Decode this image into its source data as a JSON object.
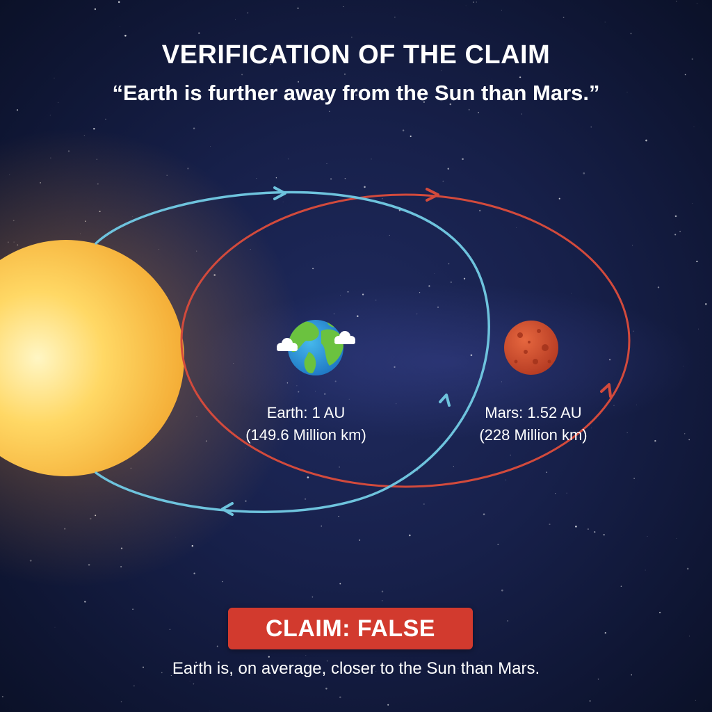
{
  "title": "VERIFICATION OF THE CLAIM",
  "claim": "“Earth is further away from the Sun than Mars.”",
  "earth": {
    "name_distance": "Earth: 1 AU",
    "distance_km": "(149.6 Million km)"
  },
  "mars": {
    "name_distance": "Mars: 1.52 AU",
    "distance_km": "(228 Million km)"
  },
  "verdict": "CLAIM: FALSE",
  "explanation": "Earth is, on average, closer to the Sun than Mars.",
  "colors": {
    "earth_orbit": "#6ec3dd",
    "mars_orbit": "#d24a3c",
    "verdict_badge": "#d23a2e",
    "sun_core": "#fff3b8",
    "sun_edge": "#f5b33a",
    "mars_surface": "#d2492e"
  }
}
